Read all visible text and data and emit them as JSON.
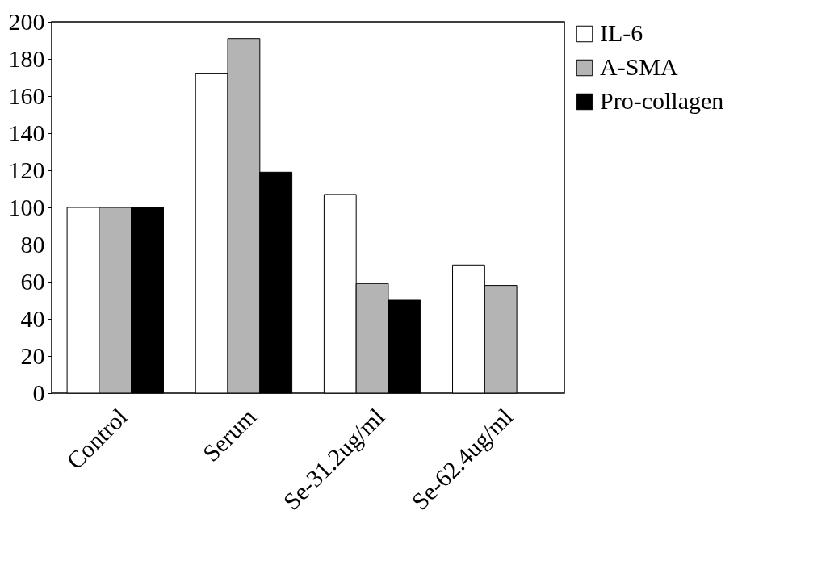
{
  "chart_data": {
    "type": "bar",
    "categories": [
      "Control",
      "Serum",
      "Se-31.2ug/ml",
      "Se-62.4ug/ml"
    ],
    "series": [
      {
        "name": "IL-6",
        "color": "#ffffff",
        "values": [
          100,
          172,
          107,
          69
        ]
      },
      {
        "name": "A-SMA",
        "color": "#b4b4b4",
        "values": [
          100,
          191,
          59,
          58
        ]
      },
      {
        "name": "Pro-collagen",
        "color": "#000000",
        "values": [
          100,
          119,
          50,
          null
        ]
      }
    ],
    "ylim": [
      0,
      200
    ],
    "yticks": [
      0,
      20,
      40,
      60,
      80,
      100,
      120,
      140,
      160,
      180,
      200
    ],
    "grid": false,
    "legend": "right"
  }
}
